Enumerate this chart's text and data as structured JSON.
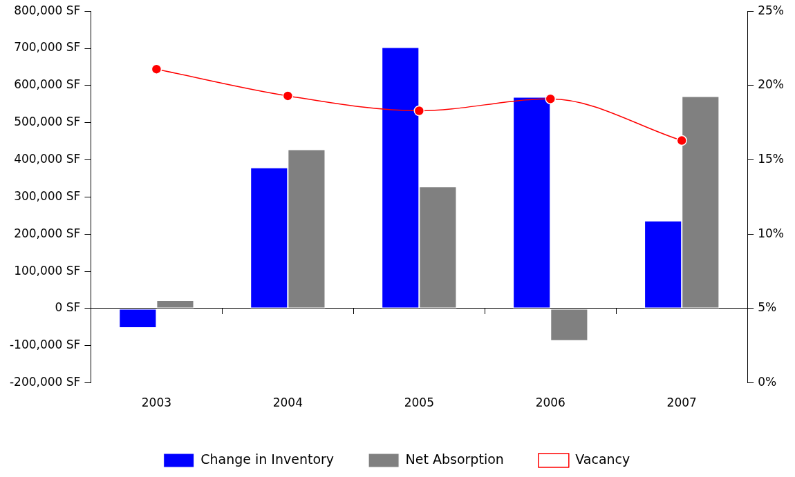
{
  "chart_data": {
    "type": "bar",
    "categories": [
      "2003",
      "2004",
      "2005",
      "2006",
      "2007"
    ],
    "series": [
      {
        "name": "Change in Inventory",
        "color": "#0000ff",
        "values": [
          -52000,
          379000,
          703000,
          569000,
          236000
        ]
      },
      {
        "name": "Net Absorption",
        "color": "#808080",
        "values": [
          22000,
          428000,
          328000,
          -87000,
          571000
        ]
      },
      {
        "name": "Vacancy",
        "type": "line",
        "axis": "y2",
        "color": "#ff0000",
        "marker": "circle",
        "values": [
          21.1,
          19.3,
          18.3,
          19.1,
          16.3
        ]
      }
    ],
    "ylim": [
      -200000,
      800000
    ],
    "yticks": [
      {
        "value": -200000,
        "label": "-200,000 SF"
      },
      {
        "value": -100000,
        "label": "-100,000 SF"
      },
      {
        "value": 0,
        "label": "0 SF"
      },
      {
        "value": 100000,
        "label": "100,000 SF"
      },
      {
        "value": 200000,
        "label": "200,000 SF"
      },
      {
        "value": 300000,
        "label": "300,000 SF"
      },
      {
        "value": 400000,
        "label": "400,000 SF"
      },
      {
        "value": 500000,
        "label": "500,000 SF"
      },
      {
        "value": 600000,
        "label": "600,000 SF"
      },
      {
        "value": 700000,
        "label": "700,000 SF"
      },
      {
        "value": 800000,
        "label": "800,000 SF"
      }
    ],
    "y2lim": [
      0,
      25
    ],
    "y2ticks": [
      {
        "value": 0,
        "label": "0%"
      },
      {
        "value": 5,
        "label": "5%"
      },
      {
        "value": 10,
        "label": "10%"
      },
      {
        "value": 15,
        "label": "15%"
      },
      {
        "value": 20,
        "label": "20%"
      },
      {
        "value": 25,
        "label": "25%"
      }
    ],
    "legend": "bottom"
  }
}
